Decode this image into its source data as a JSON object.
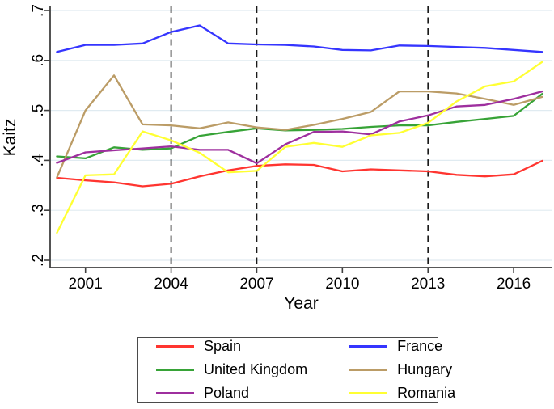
{
  "chart_data": {
    "type": "line",
    "title": "",
    "xlabel": "Year",
    "ylabel": "Kaitz",
    "x": [
      2000,
      2001,
      2002,
      2003,
      2004,
      2005,
      2006,
      2007,
      2008,
      2009,
      2010,
      2011,
      2012,
      2013,
      2014,
      2015,
      2016,
      2017
    ],
    "xticks": [
      2001,
      2004,
      2007,
      2010,
      2013,
      2016
    ],
    "yticks": [
      {
        "label": ".2",
        "value": 0.2
      },
      {
        "label": ".3",
        "value": 0.3
      },
      {
        "label": ".4",
        "value": 0.4
      },
      {
        "label": ".5",
        "value": 0.5
      },
      {
        "label": ".6",
        "value": 0.6
      },
      {
        "label": ".7",
        "value": 0.7
      }
    ],
    "ylim": [
      0.2,
      0.7
    ],
    "grid": "horizontal",
    "gridline_color": "#e0ebf1",
    "axis_color": "#404040",
    "dashed_vlines": [
      2004,
      2007,
      2013
    ],
    "dashed_vline_color": "#1a1a1a",
    "series": [
      {
        "name": "Spain",
        "color": "#ff3530",
        "values": [
          0.365,
          0.36,
          0.356,
          0.348,
          0.353,
          0.368,
          0.38,
          0.389,
          0.392,
          0.391,
          0.378,
          0.382,
          0.38,
          0.378,
          0.371,
          0.368,
          0.372,
          0.399
        ]
      },
      {
        "name": "France",
        "color": "#3535ff",
        "values": [
          0.617,
          0.631,
          0.631,
          0.634,
          0.657,
          0.67,
          0.634,
          0.632,
          0.631,
          0.628,
          0.621,
          0.62,
          0.63,
          0.629,
          0.627,
          0.625,
          0.621,
          0.617
        ]
      },
      {
        "name": "United Kingdom",
        "color": "#37a337",
        "values": [
          0.408,
          0.404,
          0.426,
          0.421,
          0.424,
          0.449,
          0.457,
          0.464,
          0.46,
          0.461,
          0.463,
          0.467,
          0.47,
          0.47,
          0.477,
          0.483,
          0.489,
          0.533
        ]
      },
      {
        "name": "Hungary",
        "color": "#bb9c66",
        "values": [
          0.366,
          0.5,
          0.57,
          0.472,
          0.47,
          0.464,
          0.476,
          0.466,
          0.461,
          0.471,
          0.483,
          0.497,
          0.538,
          0.538,
          0.534,
          0.523,
          0.511,
          0.527
        ]
      },
      {
        "name": "Poland",
        "color": "#9e2f9e",
        "values": [
          0.395,
          0.416,
          0.42,
          0.424,
          0.428,
          0.421,
          0.421,
          0.394,
          0.432,
          0.457,
          0.458,
          0.452,
          0.478,
          0.49,
          0.508,
          0.511,
          0.523,
          0.538
        ]
      },
      {
        "name": "Romania",
        "color": "#ffff33",
        "values": [
          0.255,
          0.37,
          0.372,
          0.458,
          0.44,
          0.415,
          0.376,
          0.379,
          0.427,
          0.435,
          0.427,
          0.45,
          0.455,
          0.475,
          0.518,
          0.548,
          0.558,
          0.597
        ]
      }
    ],
    "legend": {
      "position": "bottom",
      "columns": 2,
      "order": [
        "Spain",
        "United Kingdom",
        "Poland",
        "France",
        "Hungary",
        "Romania"
      ]
    }
  }
}
